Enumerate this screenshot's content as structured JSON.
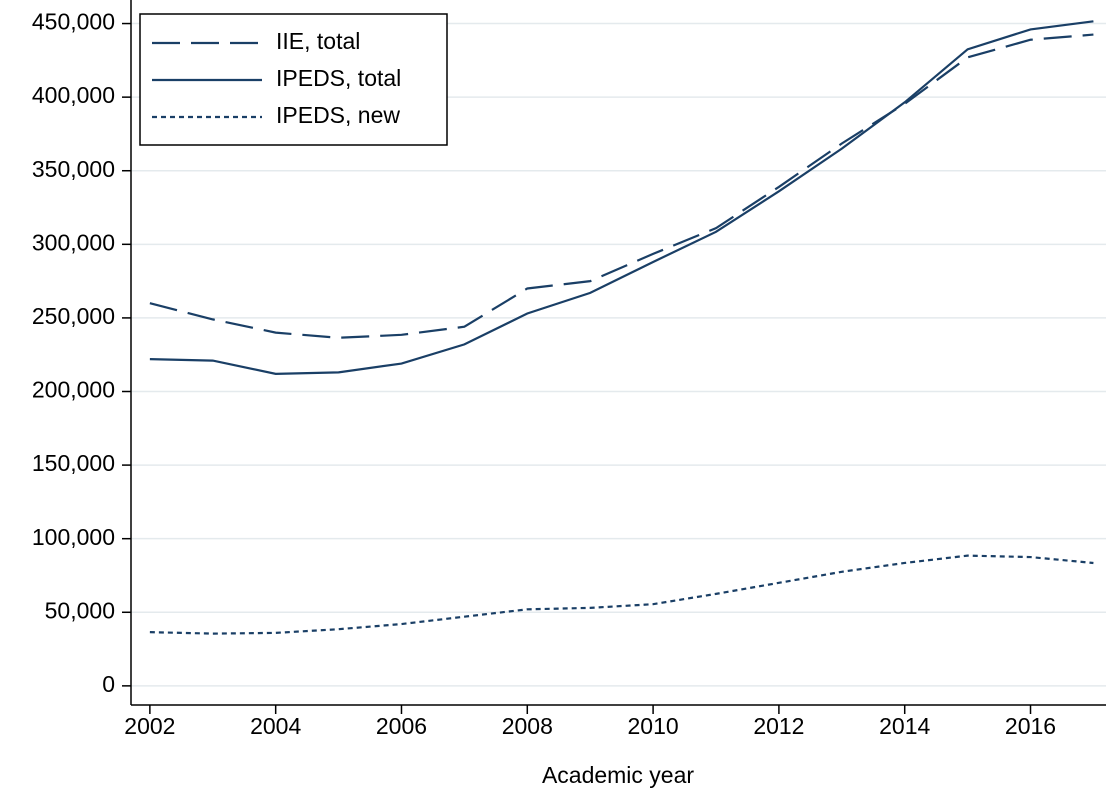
{
  "chart_data": {
    "type": "line",
    "x_label": "Academic year",
    "x": [
      2002,
      2003,
      2004,
      2005,
      2006,
      2007,
      2008,
      2009,
      2010,
      2011,
      2012,
      2013,
      2014,
      2015,
      2016,
      2017
    ],
    "series": [
      {
        "name": "IIE, total",
        "color": "#1a3f66",
        "dash": "long",
        "values": [
          260000,
          249000,
          240000,
          236500,
          238500,
          244000,
          270000,
          275000,
          293500,
          311000,
          339000,
          368500,
          395500,
          427000,
          439000,
          442500
        ]
      },
      {
        "name": "IPEDS, total",
        "color": "#1a3f66",
        "dash": "solid",
        "values": [
          222000,
          221000,
          212000,
          213000,
          219000,
          232000,
          253000,
          267000,
          288000,
          308500,
          336000,
          365000,
          396500,
          432500,
          446000,
          451500
        ]
      },
      {
        "name": "IPEDS, new",
        "color": "#1a3f66",
        "dash": "short",
        "values": [
          36500,
          35500,
          36000,
          38500,
          42000,
          47000,
          52000,
          53000,
          55500,
          62500,
          70000,
          77500,
          83500,
          88500,
          87500,
          83500
        ]
      }
    ],
    "xlim": [
      2001.7,
      2017.2
    ],
    "xticks": [
      2002,
      2004,
      2006,
      2008,
      2010,
      2012,
      2014,
      2016
    ],
    "ylim": [
      -13000,
      466000
    ],
    "yticks": [
      0,
      {
        "value": 50000,
        "label": "50,000"
      },
      {
        "value": 100000,
        "label": "100,000"
      },
      {
        "value": 150000,
        "label": "150,000"
      },
      {
        "value": 200000,
        "label": "200,000"
      },
      {
        "value": 250000,
        "label": "250,000"
      },
      {
        "value": 300000,
        "label": "300,000"
      },
      {
        "value": 350000,
        "label": "350,000"
      },
      {
        "value": 400000,
        "label": "400,000"
      },
      {
        "value": 450000,
        "label": "450,000"
      }
    ],
    "grid": true,
    "legend_position": "top-left"
  }
}
